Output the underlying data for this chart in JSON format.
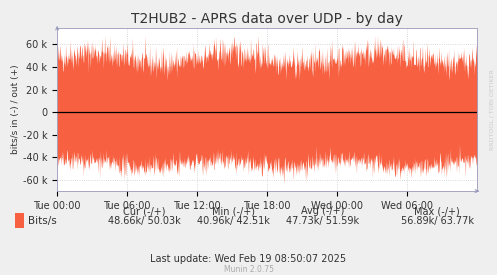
{
  "title": "T2HUB2 - APRS data over UDP - by day",
  "ylabel": "bits/s in (-) / out (+)",
  "xlabel_ticks": [
    "Tue 00:00",
    "Tue 06:00",
    "Tue 12:00",
    "Tue 18:00",
    "Wed 00:00",
    "Wed 06:00"
  ],
  "xlim": [
    0,
    1
  ],
  "ylim": [
    -70000,
    75000
  ],
  "yticks": [
    -60000,
    -40000,
    -20000,
    0,
    20000,
    40000,
    60000
  ],
  "ytick_labels": [
    "-60 k",
    "-40 k",
    "-20 k",
    "0",
    "20 k",
    "40 k",
    "60 k"
  ],
  "fill_color": "#F76040",
  "fill_alpha": 1.0,
  "bg_color": "#EFEFEF",
  "plot_bg_color": "#FFFFFF",
  "grid_color": "#CCCCCC",
  "zero_line_color": "#000000",
  "axis_color": "#AAAAAA",
  "arrow_color": "#9999BB",
  "legend_label": "Bits/s",
  "legend_color": "#F76040",
  "cur_label": "Cur (-/+)",
  "min_label": "Min (-/+)",
  "avg_label": "Avg (-/+)",
  "max_label": "Max (-/+)",
  "cur_val": "48.66k/ 50.03k",
  "min_val": "40.96k/ 42.51k",
  "avg_val": "47.73k/ 51.59k",
  "max_val": "56.89k/ 63.77k",
  "last_update": "Last update: Wed Feb 19 08:50:07 2025",
  "munin_label": "Munin 2.0.75",
  "rrdtool_label": "RRDTOOL / TOBI OETIKER",
  "num_points": 1000,
  "positive_mean": 48000,
  "positive_std": 5000,
  "negative_mean": -46000,
  "noise_amp": 7000,
  "title_fontsize": 10,
  "tick_fontsize": 7,
  "legend_fontsize": 7.5,
  "stats_fontsize": 7
}
